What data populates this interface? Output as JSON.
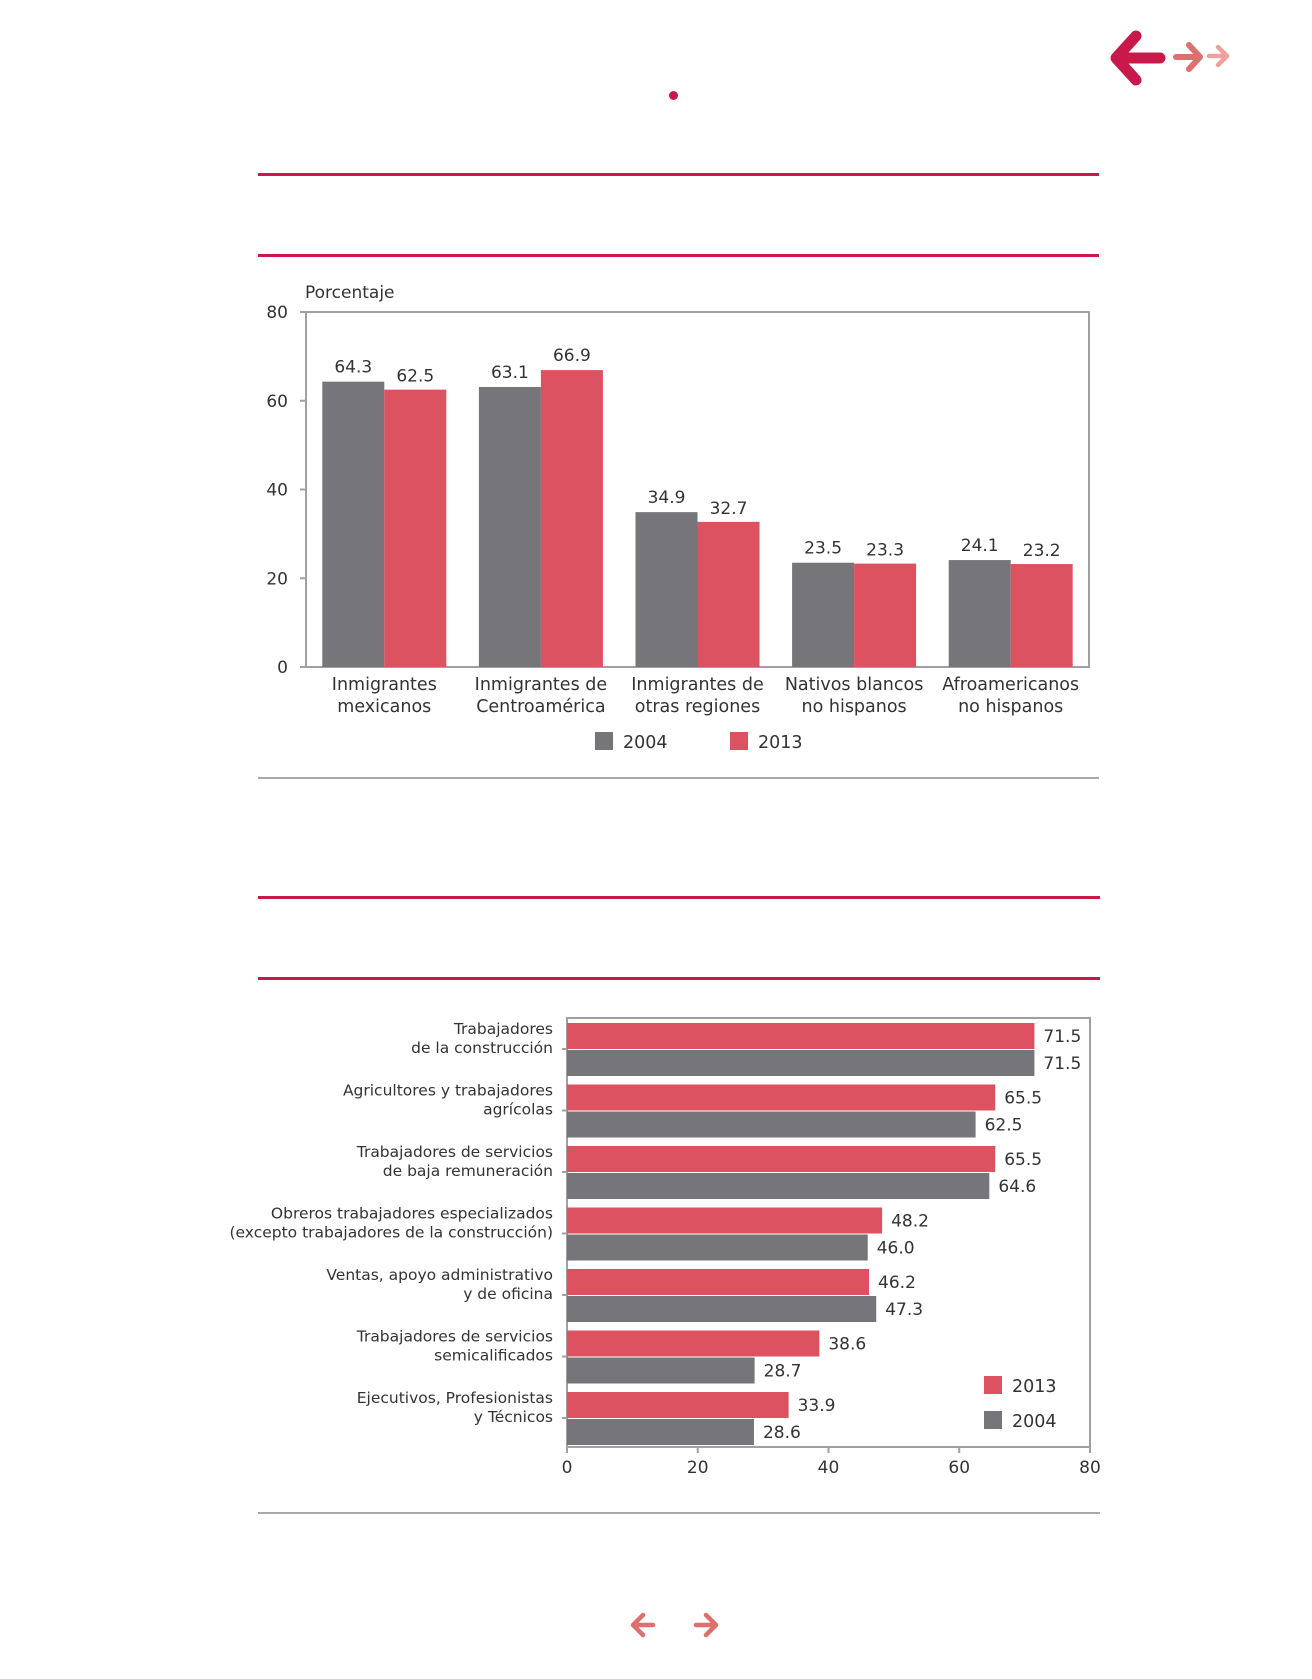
{
  "colors": {
    "accent": "#c8194a",
    "series_2004": "#76767a",
    "series_2013": "#dc5260",
    "nav_dark": "#c8194a",
    "nav_mid": "#df6e6e",
    "nav_light": "#eda0a0",
    "axis": "#a0a0a0",
    "text": "#333333"
  },
  "nav": {
    "top_back_icon": "arrow-left-icon",
    "top_forward_icon": "arrow-right-icon",
    "bottom_back_icon": "arrow-left-icon",
    "bottom_forward_icon": "arrow-right-icon"
  },
  "chart_data": [
    {
      "type": "bar",
      "orientation": "vertical",
      "ylabel": "Porcentaje",
      "ylim": [
        0,
        80
      ],
      "yticks": [
        "0",
        "20",
        "40",
        "60",
        "80"
      ],
      "grid": false,
      "legend_position": "bottom-center",
      "categories": [
        [
          "Inmigrantes",
          "mexicanos"
        ],
        [
          "Inmigrantes de",
          "Centroamérica"
        ],
        [
          "Inmigrantes de",
          "otras regiones"
        ],
        [
          "Nativos blancos",
          "no hispanos"
        ],
        [
          "Afroamericanos",
          "no hispanos"
        ]
      ],
      "series": [
        {
          "name": "2004",
          "values": [
            64.3,
            63.1,
            34.9,
            23.5,
            24.1
          ],
          "labels": [
            "64.3",
            "63.1",
            "34.9",
            "23.5",
            "24.1"
          ]
        },
        {
          "name": "2013",
          "values": [
            62.5,
            66.9,
            32.7,
            23.3,
            23.2
          ],
          "labels": [
            "62.5",
            "66.9",
            "32.7",
            "23.3",
            "23.2"
          ]
        }
      ]
    },
    {
      "type": "bar",
      "orientation": "horizontal",
      "xlim": [
        0,
        80
      ],
      "xticks": [
        "0",
        "20",
        "40",
        "60",
        "80"
      ],
      "grid": false,
      "legend_position": "bottom-right",
      "categories": [
        [
          "Trabajadores",
          "de la construcción"
        ],
        [
          "Agricultores y trabajadores",
          "agrícolas"
        ],
        [
          "Trabajadores de servicios",
          "de baja remuneración"
        ],
        [
          "Obreros trabajadores especializados",
          "(excepto trabajadores de la construcción)"
        ],
        [
          "Ventas, apoyo administrativo",
          "y de oficina"
        ],
        [
          "Trabajadores de servicios",
          "semicalificados"
        ],
        [
          "Ejecutivos, Profesionistas",
          "y Técnicos"
        ]
      ],
      "series": [
        {
          "name": "2013",
          "values": [
            71.5,
            65.5,
            65.5,
            48.2,
            46.2,
            38.6,
            33.9
          ],
          "labels": [
            "71.5",
            "65.5",
            "65.5",
            "48.2",
            "46.2",
            "38.6",
            "33.9"
          ]
        },
        {
          "name": "2004",
          "values": [
            71.5,
            62.5,
            64.6,
            46.0,
            47.3,
            28.7,
            28.6
          ],
          "labels": [
            "71.5",
            "62.5",
            "64.6",
            "46.0",
            "47.3",
            "28.7",
            "28.6"
          ]
        }
      ]
    }
  ]
}
